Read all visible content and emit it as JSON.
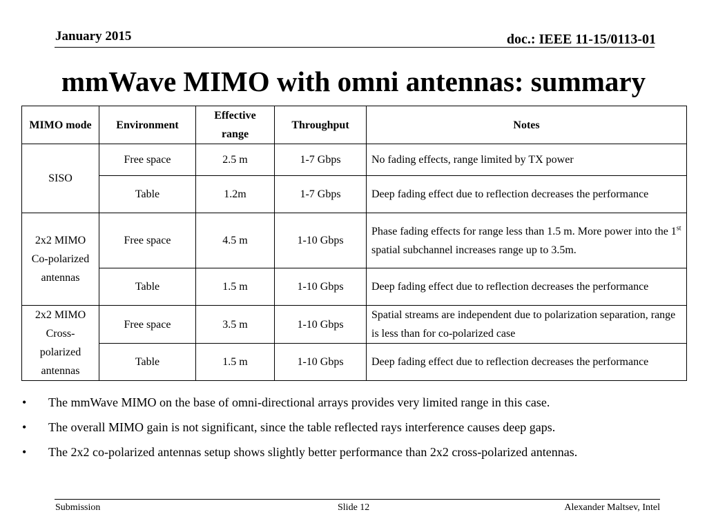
{
  "header": {
    "date": "January 2015",
    "doc_id": "doc.: IEEE 11-15/0113-01"
  },
  "title": "mmWave MIMO with omni antennas: summary",
  "table": {
    "columns": [
      "MIMO mode",
      "Environment",
      "Effective range",
      "Throughput",
      "Notes"
    ],
    "groups": [
      {
        "mode": "SISO",
        "rows": [
          {
            "environment": "Free space",
            "range": "2.5 m",
            "throughput": "1-7 Gbps",
            "notes": "No fading effects, range limited by TX power"
          },
          {
            "environment": "Table",
            "range": "1.2m",
            "throughput": "1-7 Gbps",
            "notes": "Deep fading effect due to reflection decreases the performance"
          }
        ]
      },
      {
        "mode": "2x2 MIMO Co-polarized antennas",
        "rows": [
          {
            "environment": "Free space",
            "range": "4.5 m",
            "throughput": "1-10 Gbps",
            "notes_pre": "Phase fading effects for range less than 1.5 m. More power into the 1",
            "notes_sup": "st",
            "notes_post": " spatial subchannel increases range up to 3.5m."
          },
          {
            "environment": "Table",
            "range": "1.5 m",
            "throughput": "1-10 Gbps",
            "notes": "Deep fading effect due to reflection decreases the performance"
          }
        ]
      },
      {
        "mode": "2x2 MIMO Cross-polarized antennas",
        "rows": [
          {
            "environment": "Free space",
            "range": "3.5 m",
            "throughput": "1-10 Gbps",
            "notes": "Spatial streams are independent due to polarization separation, range is less than for co-polarized case"
          },
          {
            "environment": "Table",
            "range": "1.5 m",
            "throughput": "1-10 Gbps",
            "notes": "Deep fading effect due to reflection decreases the performance"
          }
        ]
      }
    ]
  },
  "bullets": [
    {
      "marker": "•",
      "text": "The mmWave MIMO on the base of omni-directional arrays provides very limited range in this case."
    },
    {
      "marker": "•",
      "text": "The overall MIMO gain is not significant, since the table reflected rays interference causes deep gaps."
    },
    {
      "marker": "•",
      "text": "The 2x2 co-polarized antennas setup shows slightly better performance than 2x2 cross-polarized antennas."
    }
  ],
  "footer": {
    "left": "Submission",
    "center": "Slide 12",
    "right": "Alexander Maltsev, Intel"
  }
}
